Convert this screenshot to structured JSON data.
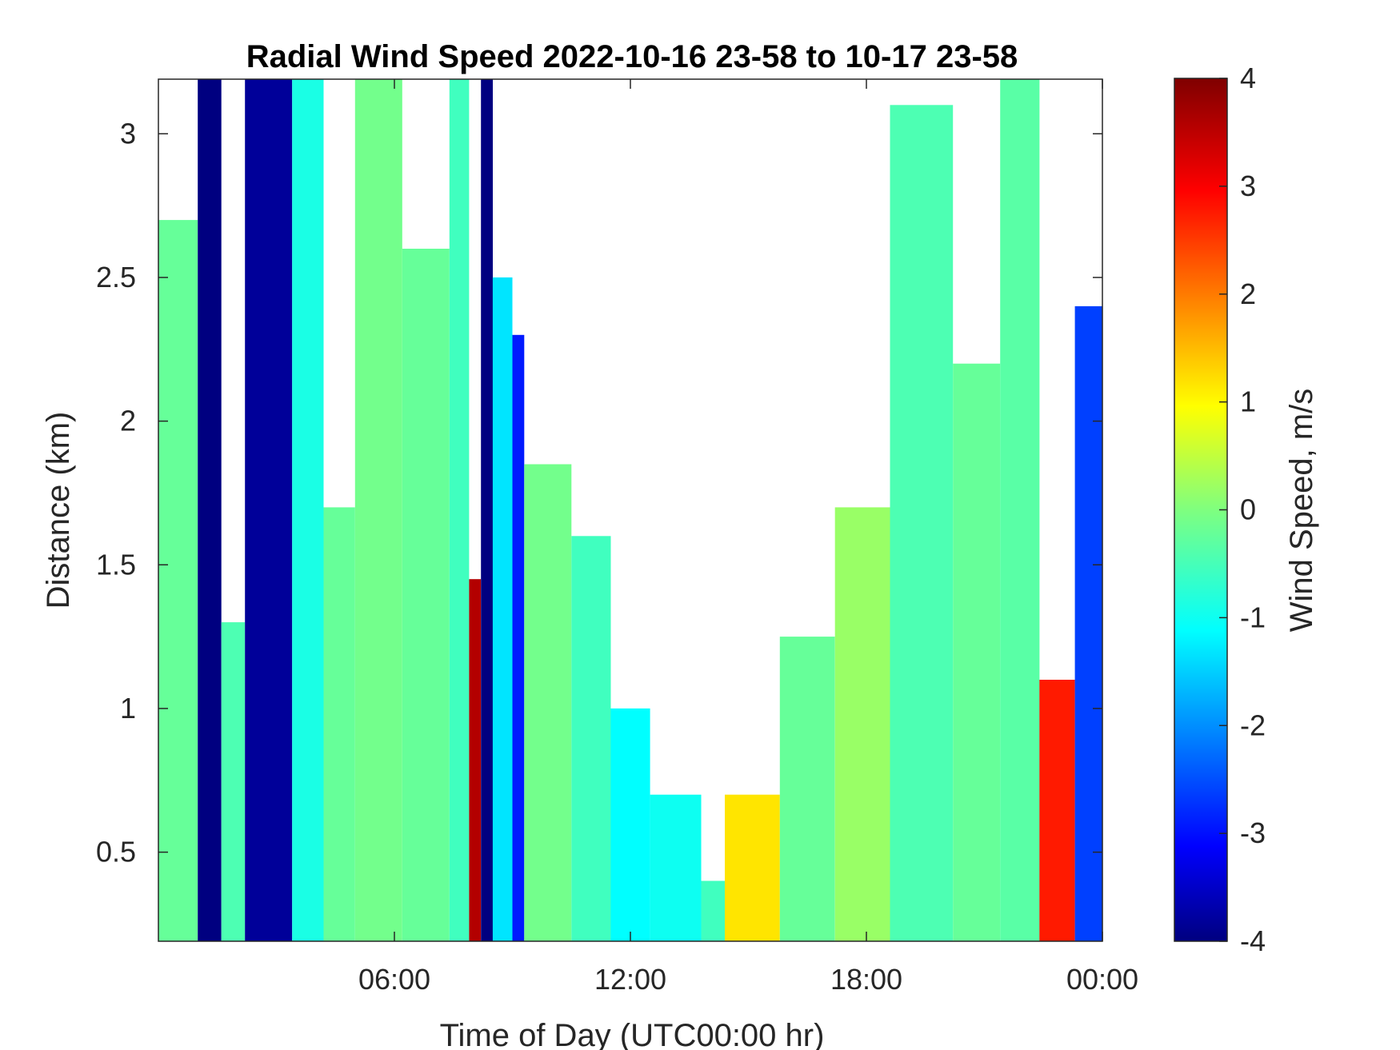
{
  "chart_data": {
    "type": "heatmap",
    "title": "Radial Wind Speed 2022-10-16 23-58 to 10-17 23-58",
    "xlabel": "Time of Day (UTC00:00 hr)",
    "ylabel": "Distance (km)",
    "xlim": [
      0,
      24
    ],
    "ylim": [
      0.19,
      3.19
    ],
    "x_ticks": [
      {
        "value": 6,
        "label": "06:00"
      },
      {
        "value": 12,
        "label": "12:00"
      },
      {
        "value": 18,
        "label": "18:00"
      },
      {
        "value": 24,
        "label": "00:00"
      }
    ],
    "y_ticks": [
      {
        "value": 0.5,
        "label": "0.5"
      },
      {
        "value": 1,
        "label": "1"
      },
      {
        "value": 1.5,
        "label": "1.5"
      },
      {
        "value": 2,
        "label": "2"
      },
      {
        "value": 2.5,
        "label": "2.5"
      },
      {
        "value": 3,
        "label": "3"
      }
    ],
    "colorbar": {
      "label": "Wind Speed, m/s",
      "clim": [
        -4,
        4
      ],
      "colormap": "jet",
      "ticks": [
        {
          "value": 4,
          "label": "4"
        },
        {
          "value": 3,
          "label": "3"
        },
        {
          "value": 2,
          "label": "2"
        },
        {
          "value": 1,
          "label": "1"
        },
        {
          "value": 0,
          "label": "0"
        },
        {
          "value": -1,
          "label": "-1"
        },
        {
          "value": -2,
          "label": "-2"
        },
        {
          "value": -3,
          "label": "-3"
        },
        {
          "value": -4,
          "label": "-4"
        }
      ]
    },
    "regions": [
      {
        "x0": 0.0,
        "x1": 1.0,
        "ymax": 2.7,
        "value": -0.2
      },
      {
        "x0": 1.0,
        "x1": 1.6,
        "ymax": 3.19,
        "value": -4.0
      },
      {
        "x0": 1.6,
        "x1": 2.2,
        "ymax": 1.3,
        "value": -0.4
      },
      {
        "x0": 2.2,
        "x1": 3.4,
        "ymax": 3.19,
        "value": -3.8
      },
      {
        "x0": 3.4,
        "x1": 4.2,
        "ymax": 3.19,
        "value": -0.8
      },
      {
        "x0": 4.2,
        "x1": 5.0,
        "ymax": 1.7,
        "value": -0.2
      },
      {
        "x0": 5.0,
        "x1": 6.2,
        "ymax": 3.19,
        "value": -0.1
      },
      {
        "x0": 6.2,
        "x1": 7.4,
        "ymax": 2.6,
        "value": -0.2
      },
      {
        "x0": 7.4,
        "x1": 7.9,
        "ymax": 3.19,
        "value": -0.5
      },
      {
        "x0": 7.9,
        "x1": 8.2,
        "ymax": 1.45,
        "value": 3.6
      },
      {
        "x0": 8.2,
        "x1": 8.5,
        "ymax": 3.19,
        "value": -4.0
      },
      {
        "x0": 8.5,
        "x1": 9.0,
        "ymax": 2.5,
        "value": -1.2
      },
      {
        "x0": 9.0,
        "x1": 9.3,
        "ymax": 2.3,
        "value": -2.8
      },
      {
        "x0": 9.3,
        "x1": 10.5,
        "ymax": 1.85,
        "value": -0.1
      },
      {
        "x0": 10.5,
        "x1": 11.5,
        "ymax": 1.6,
        "value": -0.5
      },
      {
        "x0": 11.5,
        "x1": 12.5,
        "ymax": 1.0,
        "value": -1.0
      },
      {
        "x0": 12.5,
        "x1": 13.8,
        "ymax": 0.7,
        "value": -0.9
      },
      {
        "x0": 13.8,
        "x1": 14.4,
        "ymax": 0.4,
        "value": -0.5
      },
      {
        "x0": 14.4,
        "x1": 15.8,
        "ymax": 0.7,
        "value": 1.2
      },
      {
        "x0": 15.8,
        "x1": 17.2,
        "ymax": 1.25,
        "value": -0.2
      },
      {
        "x0": 17.2,
        "x1": 18.6,
        "ymax": 1.7,
        "value": 0.2
      },
      {
        "x0": 18.6,
        "x1": 20.2,
        "ymax": 3.1,
        "value": -0.4
      },
      {
        "x0": 20.2,
        "x1": 21.4,
        "ymax": 2.2,
        "value": -0.2
      },
      {
        "x0": 21.4,
        "x1": 22.4,
        "ymax": 3.19,
        "value": -0.3
      },
      {
        "x0": 22.4,
        "x1": 23.3,
        "ymax": 1.1,
        "value": 2.8
      },
      {
        "x0": 23.3,
        "x1": 24.0,
        "ymax": 2.4,
        "value": -2.5
      }
    ]
  }
}
